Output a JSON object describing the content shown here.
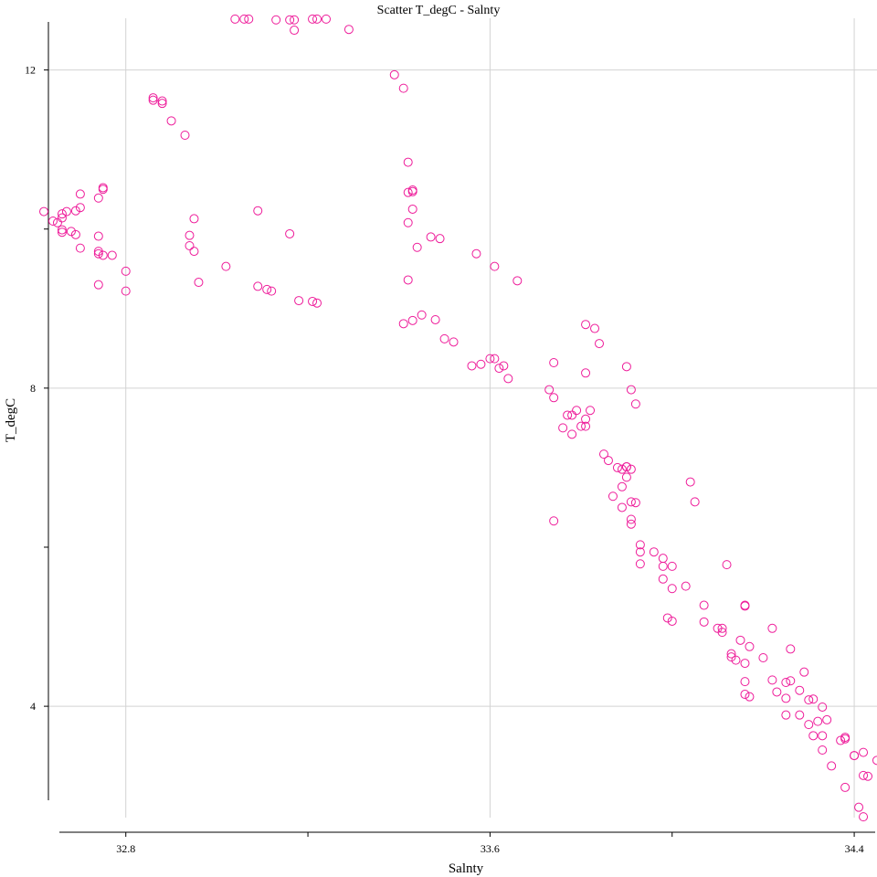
{
  "chart_data": {
    "type": "scatter",
    "title": "Scatter T_degC - Salnty",
    "xlabel": "Salnty",
    "ylabel": "T_degC",
    "xlim": [
      32.63,
      34.45
    ],
    "ylim": [
      2.6,
      12.65
    ],
    "x_ticks": [
      32.8,
      33.2,
      33.6,
      34.0,
      34.4
    ],
    "x_tick_labels": [
      "32.8",
      "",
      "33.6",
      "",
      "34.4"
    ],
    "y_ticks": [
      4,
      6,
      8,
      10,
      12
    ],
    "y_tick_labels": [
      "4",
      "",
      "8",
      "",
      "12"
    ],
    "grid_x": [
      32.8,
      33.6,
      34.4
    ],
    "grid_y": [
      4,
      8,
      12
    ],
    "grid": true,
    "legend": "none",
    "marker": "open-circle",
    "colors": {
      "point": "#ee1c9a",
      "grid": "#d3d3d3",
      "axis": "#000000"
    },
    "series": [
      {
        "points": [
          [
            33.04,
            12.64
          ],
          [
            33.06,
            12.64
          ],
          [
            33.07,
            12.64
          ],
          [
            33.13,
            12.63
          ],
          [
            33.16,
            12.63
          ],
          [
            33.17,
            12.63
          ],
          [
            33.17,
            12.5
          ],
          [
            33.21,
            12.64
          ],
          [
            33.22,
            12.64
          ],
          [
            33.24,
            12.64
          ],
          [
            33.29,
            12.51
          ],
          [
            33.39,
            11.94
          ],
          [
            33.41,
            11.77
          ],
          [
            32.86,
            11.65
          ],
          [
            32.86,
            11.62
          ],
          [
            32.88,
            11.61
          ],
          [
            32.88,
            11.58
          ],
          [
            32.9,
            11.36
          ],
          [
            32.93,
            11.18
          ],
          [
            33.42,
            10.84
          ],
          [
            33.42,
            10.46
          ],
          [
            33.43,
            10.47
          ],
          [
            33.43,
            10.49
          ],
          [
            33.43,
            10.25
          ],
          [
            33.42,
            10.08
          ],
          [
            33.44,
            9.77
          ],
          [
            33.42,
            9.36
          ],
          [
            32.75,
            10.5
          ],
          [
            32.75,
            10.52
          ],
          [
            32.74,
            10.39
          ],
          [
            32.7,
            10.44
          ],
          [
            32.67,
            10.22
          ],
          [
            32.66,
            10.19
          ],
          [
            32.66,
            10.14
          ],
          [
            32.69,
            10.23
          ],
          [
            32.7,
            10.27
          ],
          [
            32.65,
            10.08
          ],
          [
            32.62,
            10.22
          ],
          [
            32.64,
            10.1
          ],
          [
            32.66,
            9.96
          ],
          [
            32.66,
            9.99
          ],
          [
            32.68,
            9.97
          ],
          [
            32.69,
            9.93
          ],
          [
            32.74,
            9.91
          ],
          [
            32.7,
            9.76
          ],
          [
            32.74,
            9.72
          ],
          [
            32.74,
            9.69
          ],
          [
            32.75,
            9.67
          ],
          [
            32.77,
            9.67
          ],
          [
            32.8,
            9.47
          ],
          [
            32.74,
            9.3
          ],
          [
            32.8,
            9.22
          ],
          [
            32.94,
            9.92
          ],
          [
            32.95,
            10.13
          ],
          [
            32.94,
            9.79
          ],
          [
            32.95,
            9.72
          ],
          [
            32.96,
            9.33
          ],
          [
            33.02,
            9.53
          ],
          [
            33.09,
            10.23
          ],
          [
            33.16,
            9.94
          ],
          [
            33.09,
            9.28
          ],
          [
            33.11,
            9.24
          ],
          [
            33.12,
            9.22
          ],
          [
            33.18,
            9.1
          ],
          [
            33.21,
            9.09
          ],
          [
            33.22,
            9.07
          ],
          [
            33.41,
            8.81
          ],
          [
            33.43,
            8.85
          ],
          [
            33.45,
            8.92
          ],
          [
            33.48,
            8.86
          ],
          [
            33.47,
            9.9
          ],
          [
            33.49,
            9.88
          ],
          [
            33.57,
            9.69
          ],
          [
            33.61,
            9.53
          ],
          [
            33.66,
            9.35
          ],
          [
            33.5,
            8.62
          ],
          [
            33.52,
            8.58
          ],
          [
            33.56,
            8.28
          ],
          [
            33.58,
            8.3
          ],
          [
            33.6,
            8.37
          ],
          [
            33.61,
            8.37
          ],
          [
            33.62,
            8.25
          ],
          [
            33.63,
            8.28
          ],
          [
            33.64,
            8.12
          ],
          [
            33.74,
            8.32
          ],
          [
            33.73,
            7.98
          ],
          [
            33.74,
            7.88
          ],
          [
            33.76,
            7.5
          ],
          [
            33.77,
            7.66
          ],
          [
            33.78,
            7.66
          ],
          [
            33.78,
            7.42
          ],
          [
            33.79,
            7.72
          ],
          [
            33.8,
            7.52
          ],
          [
            33.81,
            7.52
          ],
          [
            33.81,
            7.61
          ],
          [
            33.82,
            7.72
          ],
          [
            33.84,
            8.56
          ],
          [
            33.81,
            8.8
          ],
          [
            33.83,
            8.75
          ],
          [
            33.81,
            8.19
          ],
          [
            33.9,
            8.27
          ],
          [
            33.91,
            7.98
          ],
          [
            33.92,
            7.8
          ],
          [
            33.74,
            6.33
          ],
          [
            33.85,
            7.17
          ],
          [
            33.86,
            7.09
          ],
          [
            33.88,
            7.0
          ],
          [
            33.89,
            6.98
          ],
          [
            33.9,
            7.01
          ],
          [
            33.9,
            7.01
          ],
          [
            33.91,
            6.98
          ],
          [
            33.9,
            6.88
          ],
          [
            33.89,
            6.76
          ],
          [
            33.87,
            6.64
          ],
          [
            33.89,
            6.5
          ],
          [
            33.91,
            6.57
          ],
          [
            33.91,
            6.35
          ],
          [
            33.91,
            6.29
          ],
          [
            33.93,
            6.03
          ],
          [
            33.93,
            5.94
          ],
          [
            33.93,
            5.79
          ],
          [
            33.96,
            5.94
          ],
          [
            33.98,
            5.86
          ],
          [
            33.98,
            5.76
          ],
          [
            34.0,
            5.76
          ],
          [
            33.98,
            5.6
          ],
          [
            34.0,
            5.48
          ],
          [
            34.03,
            5.51
          ],
          [
            33.92,
            6.56
          ],
          [
            34.04,
            6.82
          ],
          [
            34.05,
            6.57
          ],
          [
            33.99,
            5.11
          ],
          [
            34.0,
            5.07
          ],
          [
            34.07,
            5.27
          ],
          [
            34.07,
            5.06
          ],
          [
            34.1,
            4.98
          ],
          [
            34.11,
            4.98
          ],
          [
            34.11,
            4.93
          ],
          [
            34.12,
            5.78
          ],
          [
            34.16,
            5.26
          ],
          [
            34.16,
            5.27
          ],
          [
            34.13,
            4.66
          ],
          [
            34.13,
            4.62
          ],
          [
            34.14,
            4.58
          ],
          [
            34.15,
            4.83
          ],
          [
            34.16,
            4.54
          ],
          [
            34.17,
            4.75
          ],
          [
            34.2,
            4.61
          ],
          [
            34.22,
            4.98
          ],
          [
            34.26,
            4.72
          ],
          [
            34.16,
            4.31
          ],
          [
            34.16,
            4.15
          ],
          [
            34.17,
            4.12
          ],
          [
            34.22,
            4.33
          ],
          [
            34.23,
            4.18
          ],
          [
            34.25,
            4.3
          ],
          [
            34.26,
            4.32
          ],
          [
            34.28,
            4.2
          ],
          [
            34.3,
            4.08
          ],
          [
            34.31,
            4.09
          ],
          [
            34.29,
            4.43
          ],
          [
            34.25,
            4.1
          ],
          [
            34.25,
            3.89
          ],
          [
            34.28,
            3.89
          ],
          [
            34.3,
            3.77
          ],
          [
            34.32,
            3.81
          ],
          [
            34.34,
            3.83
          ],
          [
            34.33,
            3.99
          ],
          [
            34.31,
            3.63
          ],
          [
            34.33,
            3.63
          ],
          [
            34.33,
            3.45
          ],
          [
            34.37,
            3.57
          ],
          [
            34.38,
            3.61
          ],
          [
            34.35,
            3.25
          ],
          [
            34.38,
            2.98
          ],
          [
            34.4,
            3.38
          ],
          [
            34.4,
            3.38
          ],
          [
            34.42,
            3.42
          ],
          [
            34.42,
            3.13
          ],
          [
            34.43,
            3.12
          ],
          [
            34.45,
            3.32
          ],
          [
            34.41,
            2.73
          ],
          [
            34.42,
            2.61
          ],
          [
            34.38,
            3.59
          ]
        ]
      }
    ]
  }
}
